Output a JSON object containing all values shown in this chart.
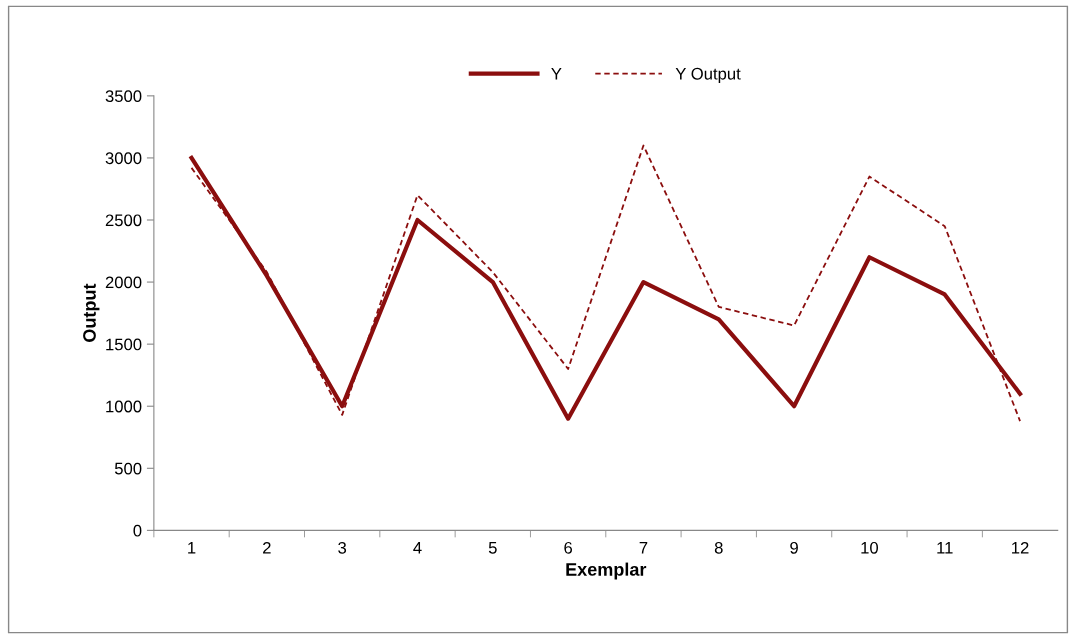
{
  "chart_data": {
    "type": "line",
    "xlabel": "Exemplar",
    "ylabel": "Output",
    "categories": [
      "1",
      "2",
      "3",
      "4",
      "5",
      "6",
      "7",
      "8",
      "9",
      "10",
      "11",
      "12"
    ],
    "series": [
      {
        "name": "Y",
        "color": "#8b0e0e",
        "line_style": "solid",
        "values": [
          3000,
          2050,
          1000,
          2500,
          2000,
          900,
          2000,
          1700,
          1000,
          2200,
          1900,
          1100
        ]
      },
      {
        "name": "Y Output",
        "color": "#8b0e0e",
        "line_style": "dashed",
        "values": [
          2920,
          2080,
          930,
          2700,
          2080,
          1300,
          3100,
          1800,
          1650,
          2850,
          2450,
          880
        ]
      }
    ],
    "ylim": [
      0,
      3500
    ],
    "yticks": [
      0,
      500,
      1000,
      1500,
      2000,
      2500,
      3000,
      3500
    ],
    "grid": false,
    "legend": "top",
    "marker": "none"
  }
}
